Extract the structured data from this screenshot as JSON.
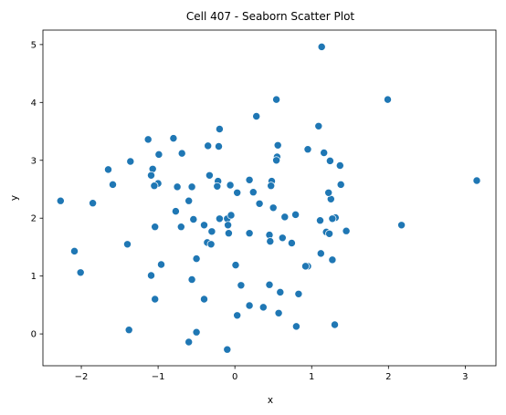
{
  "chart_data": {
    "type": "scatter",
    "title": "Cell 407 - Seaborn Scatter Plot",
    "xlabel": "x",
    "ylabel": "y",
    "xlim": [
      -2.5,
      3.4
    ],
    "ylim": [
      -0.55,
      5.25
    ],
    "xticks": [
      -2,
      -1,
      0,
      1,
      2,
      3
    ],
    "yticks": [
      0,
      1,
      2,
      3,
      4,
      5
    ],
    "xtick_labels": [
      "−2",
      "−1",
      "0",
      "1",
      "2",
      "3"
    ],
    "ytick_labels": [
      "0",
      "1",
      "2",
      "3",
      "4",
      "5"
    ],
    "grid": false,
    "legend": "none",
    "color": "#1f77b4",
    "points": [
      [
        1.13,
        4.96
      ],
      [
        0.54,
        4.05
      ],
      [
        1.99,
        4.05
      ],
      [
        1.09,
        3.59
      ],
      [
        0.28,
        3.76
      ],
      [
        -0.2,
        3.54
      ],
      [
        -1.13,
        3.36
      ],
      [
        -0.8,
        3.38
      ],
      [
        -0.35,
        3.25
      ],
      [
        -0.21,
        3.24
      ],
      [
        0.56,
        3.26
      ],
      [
        0.95,
        3.19
      ],
      [
        -0.99,
        3.1
      ],
      [
        -0.69,
        3.12
      ],
      [
        1.16,
        3.13
      ],
      [
        -1.36,
        2.98
      ],
      [
        0.55,
        3.06
      ],
      [
        0.54,
        3.0
      ],
      [
        1.24,
        2.99
      ],
      [
        1.37,
        2.91
      ],
      [
        -1.65,
        2.84
      ],
      [
        -1.07,
        2.85
      ],
      [
        -1.09,
        2.74
      ],
      [
        -0.33,
        2.74
      ],
      [
        0.19,
        2.66
      ],
      [
        0.48,
        2.64
      ],
      [
        -0.22,
        2.64
      ],
      [
        -0.06,
        2.57
      ],
      [
        -1.59,
        2.58
      ],
      [
        -1.0,
        2.6
      ],
      [
        -1.05,
        2.56
      ],
      [
        -0.75,
        2.54
      ],
      [
        -0.56,
        2.54
      ],
      [
        -0.23,
        2.55
      ],
      [
        0.47,
        2.56
      ],
      [
        1.38,
        2.58
      ],
      [
        3.15,
        2.65
      ],
      [
        -2.27,
        2.3
      ],
      [
        -1.85,
        2.26
      ],
      [
        -0.6,
        2.3
      ],
      [
        0.32,
        2.25
      ],
      [
        1.25,
        2.33
      ],
      [
        1.22,
        2.44
      ],
      [
        0.03,
        2.44
      ],
      [
        0.24,
        2.45
      ],
      [
        0.5,
        2.18
      ],
      [
        -0.77,
        2.12
      ],
      [
        0.79,
        2.06
      ],
      [
        0.65,
        2.02
      ],
      [
        1.31,
        2.01
      ],
      [
        1.27,
        1.99
      ],
      [
        -0.2,
        1.99
      ],
      [
        -0.1,
        1.99
      ],
      [
        -0.05,
        2.05
      ],
      [
        -0.54,
        1.98
      ],
      [
        1.11,
        1.96
      ],
      [
        -0.4,
        1.88
      ],
      [
        -0.7,
        1.85
      ],
      [
        -1.04,
        1.85
      ],
      [
        -0.09,
        1.88
      ],
      [
        2.17,
        1.88
      ],
      [
        1.45,
        1.78
      ],
      [
        1.19,
        1.76
      ],
      [
        -0.3,
        1.77
      ],
      [
        0.19,
        1.74
      ],
      [
        -0.08,
        1.74
      ],
      [
        1.23,
        1.73
      ],
      [
        0.45,
        1.71
      ],
      [
        0.62,
        1.66
      ],
      [
        0.74,
        1.57
      ],
      [
        0.46,
        1.6
      ],
      [
        -0.36,
        1.58
      ],
      [
        -0.31,
        1.55
      ],
      [
        -1.4,
        1.55
      ],
      [
        -2.09,
        1.43
      ],
      [
        1.12,
        1.39
      ],
      [
        -0.5,
        1.3
      ],
      [
        1.27,
        1.28
      ],
      [
        0.01,
        1.19
      ],
      [
        -0.96,
        1.2
      ],
      [
        0.95,
        1.17
      ],
      [
        0.92,
        1.17
      ],
      [
        -2.01,
        1.06
      ],
      [
        -1.09,
        1.01
      ],
      [
        -0.56,
        0.94
      ],
      [
        0.08,
        0.84
      ],
      [
        0.45,
        0.85
      ],
      [
        0.59,
        0.72
      ],
      [
        0.83,
        0.69
      ],
      [
        -1.04,
        0.6
      ],
      [
        -0.4,
        0.6
      ],
      [
        0.19,
        0.49
      ],
      [
        0.37,
        0.46
      ],
      [
        0.57,
        0.36
      ],
      [
        0.03,
        0.32
      ],
      [
        1.3,
        0.16
      ],
      [
        0.8,
        0.13
      ],
      [
        -1.38,
        0.07
      ],
      [
        -0.5,
        0.03
      ],
      [
        -0.6,
        -0.14
      ],
      [
        -0.1,
        -0.27
      ]
    ]
  }
}
